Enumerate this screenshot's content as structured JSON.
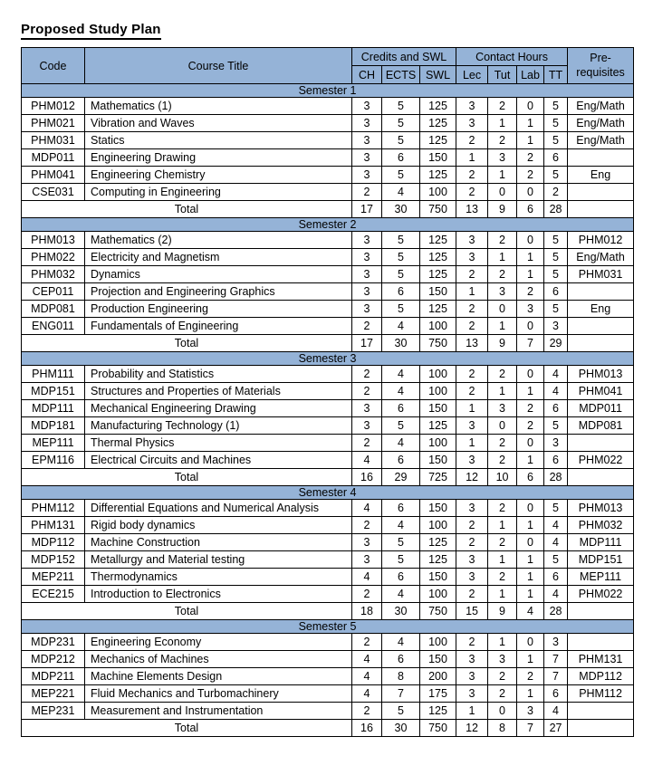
{
  "page_title": "Proposed Study Plan",
  "colors": {
    "header_fill": "#95B3D7",
    "border": "#000000",
    "text": "#000000",
    "background": "#FFFFFF"
  },
  "table": {
    "header": {
      "code": "Code",
      "course_title": "Course Title",
      "credits_group": "Credits and SWL",
      "contact_group": "Contact Hours",
      "prereq_line1": "Pre-",
      "prereq_line2": "requisites",
      "sub": [
        "CH",
        "ECTS",
        "SWL",
        "Lec",
        "Tut",
        "Lab",
        "TT"
      ]
    },
    "total_label": "Total",
    "semesters": [
      {
        "title": "Semester 1",
        "courses": [
          {
            "code": "PHM012",
            "title": "Mathematics (1)",
            "ch": 3,
            "ects": 5,
            "swl": 125,
            "lec": 3,
            "tut": 2,
            "lab": 0,
            "tt": 5,
            "prereq": "Eng/Math"
          },
          {
            "code": "PHM021",
            "title": "Vibration and Waves",
            "ch": 3,
            "ects": 5,
            "swl": 125,
            "lec": 3,
            "tut": 1,
            "lab": 1,
            "tt": 5,
            "prereq": "Eng/Math"
          },
          {
            "code": "PHM031",
            "title": "Statics",
            "ch": 3,
            "ects": 5,
            "swl": 125,
            "lec": 2,
            "tut": 2,
            "lab": 1,
            "tt": 5,
            "prereq": "Eng/Math"
          },
          {
            "code": "MDP011",
            "title": "Engineering Drawing",
            "ch": 3,
            "ects": 6,
            "swl": 150,
            "lec": 1,
            "tut": 3,
            "lab": 2,
            "tt": 6,
            "prereq": ""
          },
          {
            "code": "PHM041",
            "title": "Engineering Chemistry",
            "ch": 3,
            "ects": 5,
            "swl": 125,
            "lec": 2,
            "tut": 1,
            "lab": 2,
            "tt": 5,
            "prereq": "Eng"
          },
          {
            "code": "CSE031",
            "title": "Computing in Engineering",
            "ch": 2,
            "ects": 4,
            "swl": 100,
            "lec": 2,
            "tut": 0,
            "lab": 0,
            "tt": 2,
            "prereq": ""
          }
        ],
        "total": {
          "ch": 17,
          "ects": 30,
          "swl": 750,
          "lec": 13,
          "tut": 9,
          "lab": 6,
          "tt": 28
        }
      },
      {
        "title": "Semester 2",
        "courses": [
          {
            "code": "PHM013",
            "title": "Mathematics (2)",
            "ch": 3,
            "ects": 5,
            "swl": 125,
            "lec": 3,
            "tut": 2,
            "lab": 0,
            "tt": 5,
            "prereq": "PHM012"
          },
          {
            "code": "PHM022",
            "title": "Electricity and Magnetism",
            "ch": 3,
            "ects": 5,
            "swl": 125,
            "lec": 3,
            "tut": 1,
            "lab": 1,
            "tt": 5,
            "prereq": "Eng/Math"
          },
          {
            "code": "PHM032",
            "title": "Dynamics",
            "ch": 3,
            "ects": 5,
            "swl": 125,
            "lec": 2,
            "tut": 2,
            "lab": 1,
            "tt": 5,
            "prereq": "PHM031"
          },
          {
            "code": "CEP011",
            "title": "Projection and Engineering Graphics",
            "ch": 3,
            "ects": 6,
            "swl": 150,
            "lec": 1,
            "tut": 3,
            "lab": 2,
            "tt": 6,
            "prereq": ""
          },
          {
            "code": "MDP081",
            "title": "Production Engineering",
            "ch": 3,
            "ects": 5,
            "swl": 125,
            "lec": 2,
            "tut": 0,
            "lab": 3,
            "tt": 5,
            "prereq": "Eng"
          },
          {
            "code": "ENG011",
            "title": "Fundamentals of Engineering",
            "ch": 2,
            "ects": 4,
            "swl": 100,
            "lec": 2,
            "tut": 1,
            "lab": 0,
            "tt": 3,
            "prereq": ""
          }
        ],
        "total": {
          "ch": 17,
          "ects": 30,
          "swl": 750,
          "lec": 13,
          "tut": 9,
          "lab": 7,
          "tt": 29
        }
      },
      {
        "title": "Semester 3",
        "courses": [
          {
            "code": "PHM111",
            "title": "Probability and Statistics",
            "ch": 2,
            "ects": 4,
            "swl": 100,
            "lec": 2,
            "tut": 2,
            "lab": 0,
            "tt": 4,
            "prereq": "PHM013"
          },
          {
            "code": "MDP151",
            "title": "Structures and Properties of Materials",
            "ch": 2,
            "ects": 4,
            "swl": 100,
            "lec": 2,
            "tut": 1,
            "lab": 1,
            "tt": 4,
            "prereq": "PHM041"
          },
          {
            "code": "MDP111",
            "title": "Mechanical Engineering Drawing",
            "ch": 3,
            "ects": 6,
            "swl": 150,
            "lec": 1,
            "tut": 3,
            "lab": 2,
            "tt": 6,
            "prereq": "MDP011"
          },
          {
            "code": "MDP181",
            "title": "Manufacturing Technology (1)",
            "ch": 3,
            "ects": 5,
            "swl": 125,
            "lec": 3,
            "tut": 0,
            "lab": 2,
            "tt": 5,
            "prereq": "MDP081"
          },
          {
            "code": "MEP111",
            "title": "Thermal Physics",
            "ch": 2,
            "ects": 4,
            "swl": 100,
            "lec": 1,
            "tut": 2,
            "lab": 0,
            "tt": 3,
            "prereq": ""
          },
          {
            "code": "EPM116",
            "title": "Electrical Circuits and Machines",
            "ch": 4,
            "ects": 6,
            "swl": 150,
            "lec": 3,
            "tut": 2,
            "lab": 1,
            "tt": 6,
            "prereq": "PHM022"
          }
        ],
        "total": {
          "ch": 16,
          "ects": 29,
          "swl": 725,
          "lec": 12,
          "tut": 10,
          "lab": 6,
          "tt": 28
        }
      },
      {
        "title": "Semester 4",
        "courses": [
          {
            "code": "PHM112",
            "title": "Differential Equations and Numerical Analysis",
            "ch": 4,
            "ects": 6,
            "swl": 150,
            "lec": 3,
            "tut": 2,
            "lab": 0,
            "tt": 5,
            "prereq": "PHM013"
          },
          {
            "code": "PHM131",
            "title": "Rigid body dynamics",
            "ch": 2,
            "ects": 4,
            "swl": 100,
            "lec": 2,
            "tut": 1,
            "lab": 1,
            "tt": 4,
            "prereq": "PHM032"
          },
          {
            "code": "MDP112",
            "title": "Machine Construction",
            "ch": 3,
            "ects": 5,
            "swl": 125,
            "lec": 2,
            "tut": 2,
            "lab": 0,
            "tt": 4,
            "prereq": "MDP111"
          },
          {
            "code": "MDP152",
            "title": "Metallurgy and Material testing",
            "ch": 3,
            "ects": 5,
            "swl": 125,
            "lec": 3,
            "tut": 1,
            "lab": 1,
            "tt": 5,
            "prereq": "MDP151"
          },
          {
            "code": "MEP211",
            "title": "Thermodynamics",
            "ch": 4,
            "ects": 6,
            "swl": 150,
            "lec": 3,
            "tut": 2,
            "lab": 1,
            "tt": 6,
            "prereq": "MEP111"
          },
          {
            "code": "ECE215",
            "title": "Introduction to Electronics",
            "ch": 2,
            "ects": 4,
            "swl": 100,
            "lec": 2,
            "tut": 1,
            "lab": 1,
            "tt": 4,
            "prereq": "PHM022"
          }
        ],
        "total": {
          "ch": 18,
          "ects": 30,
          "swl": 750,
          "lec": 15,
          "tut": 9,
          "lab": 4,
          "tt": 28
        }
      },
      {
        "title": "Semester 5",
        "courses": [
          {
            "code": "MDP231",
            "title": "Engineering Economy",
            "ch": 2,
            "ects": 4,
            "swl": 100,
            "lec": 2,
            "tut": 1,
            "lab": 0,
            "tt": 3,
            "prereq": ""
          },
          {
            "code": "MDP212",
            "title": "Mechanics of Machines",
            "ch": 4,
            "ects": 6,
            "swl": 150,
            "lec": 3,
            "tut": 3,
            "lab": 1,
            "tt": 7,
            "prereq": "PHM131"
          },
          {
            "code": "MDP211",
            "title": "Machine Elements Design",
            "ch": 4,
            "ects": 8,
            "swl": 200,
            "lec": 3,
            "tut": 2,
            "lab": 2,
            "tt": 7,
            "prereq": "MDP112"
          },
          {
            "code": "MEP221",
            "title": "Fluid Mechanics and Turbomachinery",
            "ch": 4,
            "ects": 7,
            "swl": 175,
            "lec": 3,
            "tut": 2,
            "lab": 1,
            "tt": 6,
            "prereq": "PHM112"
          },
          {
            "code": "MEP231",
            "title": "Measurement and Instrumentation",
            "ch": 2,
            "ects": 5,
            "swl": 125,
            "lec": 1,
            "tut": 0,
            "lab": 3,
            "tt": 4,
            "prereq": ""
          }
        ],
        "total": {
          "ch": 16,
          "ects": 30,
          "swl": 750,
          "lec": 12,
          "tut": 8,
          "lab": 7,
          "tt": 27
        }
      }
    ]
  }
}
